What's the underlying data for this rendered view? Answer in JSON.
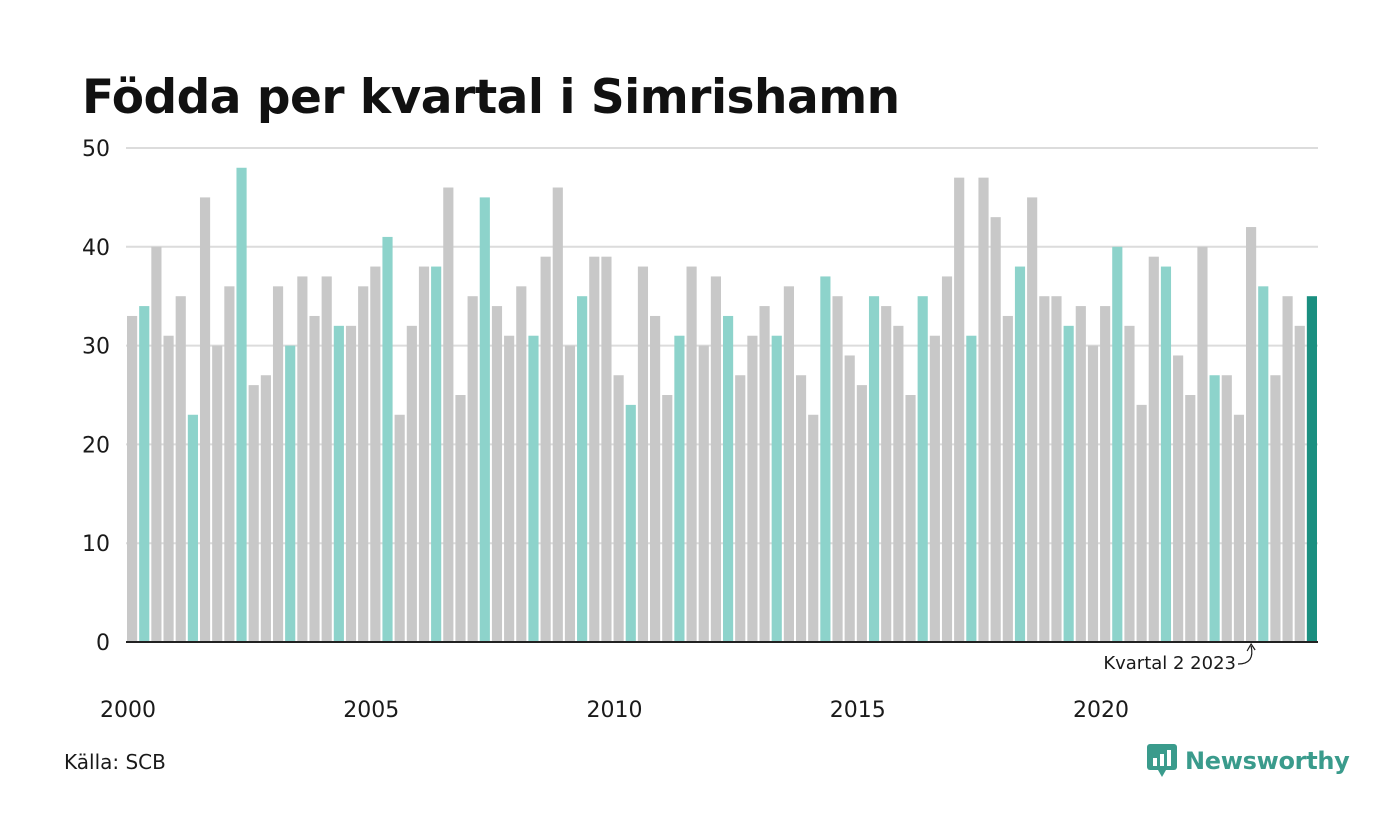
{
  "header": {
    "title": "Födda per kvartal i Simrishamn"
  },
  "footer": {
    "source": "Källa: SCB",
    "brand": "Newsworthy"
  },
  "colors": {
    "bar_default": "#c8c8c8",
    "bar_quarter_2": "#8dd3cb",
    "bar_latest": "#1a8f80",
    "gridline": "#dcdcdc",
    "axis": "#222222",
    "brand": "#3a9b8c"
  },
  "chart_data": {
    "type": "bar",
    "title": "Födda per kvartal i Simrishamn",
    "xlabel": "",
    "ylabel": "",
    "ylim": [
      0,
      50
    ],
    "yticks": [
      0,
      10,
      20,
      30,
      40,
      50
    ],
    "grid": true,
    "x_tick_labels": [
      "2000",
      "2005",
      "2010",
      "2015",
      "2020"
    ],
    "start_year": 2000,
    "highlight_quarter": 2,
    "values": [
      33,
      34,
      40,
      31,
      35,
      23,
      45,
      30,
      36,
      48,
      26,
      27,
      36,
      30,
      37,
      33,
      37,
      32,
      32,
      36,
      38,
      41,
      23,
      32,
      38,
      38,
      46,
      25,
      35,
      45,
      34,
      31,
      36,
      31,
      39,
      46,
      30,
      35,
      39,
      39,
      27,
      24,
      38,
      33,
      25,
      31,
      38,
      30,
      37,
      33,
      27,
      31,
      34,
      31,
      36,
      27,
      23,
      37,
      35,
      29,
      26,
      35,
      34,
      32,
      25,
      35,
      31,
      37,
      47,
      31,
      47,
      43,
      33,
      38,
      45,
      35,
      35,
      32,
      34,
      30,
      34,
      40,
      32,
      24,
      39,
      38,
      29,
      25,
      40,
      27,
      27,
      23,
      42,
      36,
      27,
      35,
      32,
      35
    ],
    "annotation": {
      "text": "Kvartal 2 2023"
    }
  }
}
